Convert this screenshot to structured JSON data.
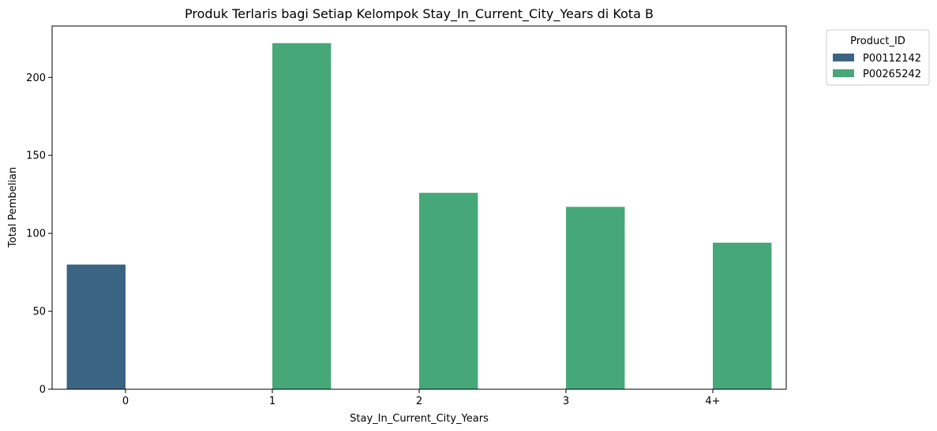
{
  "chart_data": {
    "type": "bar",
    "title": "Produk Terlaris bagi Setiap Kelompok Stay_In_Current_City_Years di Kota B",
    "xlabel": "Stay_In_Current_City_Years",
    "ylabel": "Total Pembelian",
    "categories": [
      "0",
      "1",
      "2",
      "3",
      "4+"
    ],
    "ylim": [
      0,
      233
    ],
    "yticks": [
      0,
      50,
      100,
      150,
      200
    ],
    "grid": false,
    "legend": {
      "title": "Product_ID",
      "placement": "outside-top-right"
    },
    "series": [
      {
        "name": "P00112142",
        "color": "#3b6482",
        "values": [
          80,
          null,
          null,
          null,
          null
        ]
      },
      {
        "name": "P00265242",
        "color": "#46a878",
        "values": [
          null,
          222,
          126,
          117,
          94
        ]
      }
    ]
  }
}
